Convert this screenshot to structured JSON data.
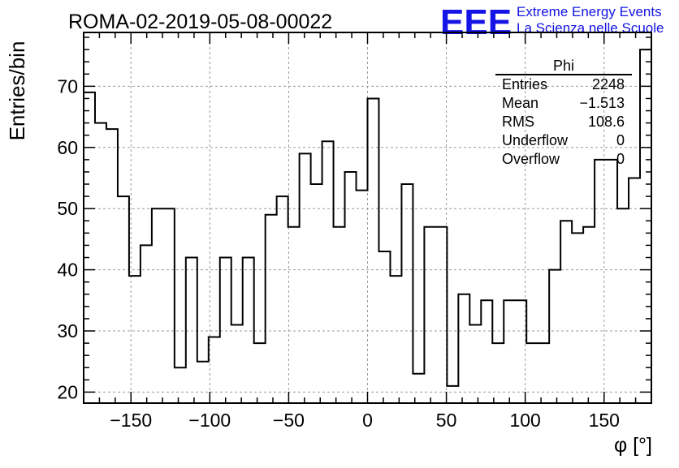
{
  "title": "ROMA-02-2019-05-08-00022",
  "logo": {
    "mark": "EEE",
    "line1": "Extreme Energy Events",
    "line2": "La Scienza nelle Scuole",
    "color": "#1414e6"
  },
  "stats": {
    "name": "Phi",
    "rows": [
      {
        "label": "Entries",
        "value": "2248"
      },
      {
        "label": "Mean",
        "value": "−1.513"
      },
      {
        "label": "RMS",
        "value": "108.6"
      },
      {
        "label": "Underflow",
        "value": "0"
      },
      {
        "label": "Overflow",
        "value": "0"
      }
    ]
  },
  "chart_data": {
    "type": "histogram",
    "title": "ROMA-02-2019-05-08-00022",
    "xlabel": "φ [°]",
    "ylabel": "Entries/bin",
    "xlim": [
      -180,
      180
    ],
    "ylim": [
      18.2,
      78.8
    ],
    "bin_width": 7.2,
    "bin_edges_start": -180,
    "values": [
      69,
      64,
      63,
      52,
      39,
      44,
      50,
      50,
      24,
      42,
      25,
      29,
      42,
      31,
      42,
      28,
      49,
      52,
      47,
      59,
      54,
      61,
      47,
      56,
      53,
      68,
      43,
      39,
      54,
      23,
      47,
      47,
      21,
      36,
      31,
      35,
      28,
      35,
      35,
      28,
      28,
      40,
      48,
      46,
      47,
      58,
      58,
      50,
      55,
      76
    ],
    "xticks": [
      -150,
      -100,
      -50,
      0,
      50,
      100,
      150
    ],
    "xtick_labels": [
      "−150",
      "−100",
      "−50",
      "0",
      "50",
      "100",
      "150"
    ],
    "yticks": [
      20,
      30,
      40,
      50,
      60,
      70
    ],
    "ytick_labels": [
      "20",
      "30",
      "40",
      "50",
      "60",
      "70"
    ],
    "grid": true,
    "line_color": "#000000"
  }
}
